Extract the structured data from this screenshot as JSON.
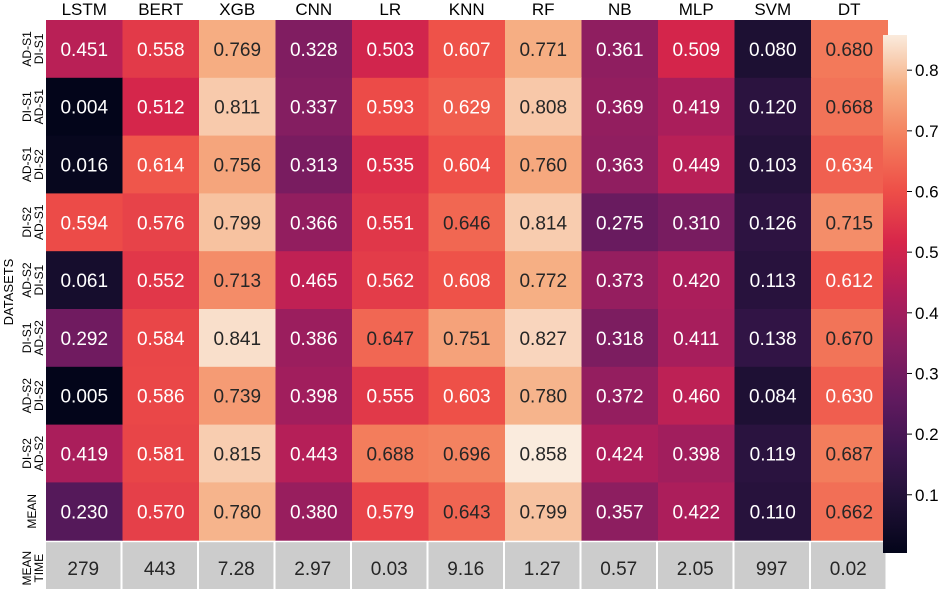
{
  "chart_data": {
    "type": "heatmap",
    "ylabel": "DATASETS",
    "columns": [
      "LSTM",
      "BERT",
      "XGB",
      "CNN",
      "LR",
      "KNN",
      "RF",
      "NB",
      "MLP",
      "SVM",
      "DT"
    ],
    "rows": [
      {
        "label": [
          "AD-S1",
          "DI-S1"
        ],
        "values": [
          "0.451",
          "0.558",
          "0.769",
          "0.328",
          "0.503",
          "0.607",
          "0.771",
          "0.361",
          "0.509",
          "0.080",
          "0.680"
        ]
      },
      {
        "label": [
          "DI-S1",
          "AD-S1"
        ],
        "values": [
          "0.004",
          "0.512",
          "0.811",
          "0.337",
          "0.593",
          "0.629",
          "0.808",
          "0.369",
          "0.419",
          "0.120",
          "0.668"
        ]
      },
      {
        "label": [
          "AD-S1",
          "DI-S2"
        ],
        "values": [
          "0.016",
          "0.614",
          "0.756",
          "0.313",
          "0.535",
          "0.604",
          "0.760",
          "0.363",
          "0.449",
          "0.103",
          "0.634"
        ]
      },
      {
        "label": [
          "DI-S2",
          "AD-S1"
        ],
        "values": [
          "0.594",
          "0.576",
          "0.799",
          "0.366",
          "0.551",
          "0.646",
          "0.814",
          "0.275",
          "0.310",
          "0.126",
          "0.715"
        ]
      },
      {
        "label": [
          "AD-S2",
          "DI-S1"
        ],
        "values": [
          "0.061",
          "0.552",
          "0.713",
          "0.465",
          "0.562",
          "0.608",
          "0.772",
          "0.373",
          "0.420",
          "0.113",
          "0.612"
        ]
      },
      {
        "label": [
          "DI-S1",
          "AD-S2"
        ],
        "values": [
          "0.292",
          "0.584",
          "0.841",
          "0.386",
          "0.647",
          "0.751",
          "0.827",
          "0.318",
          "0.411",
          "0.138",
          "0.670"
        ]
      },
      {
        "label": [
          "AD-S2",
          "DI-S2"
        ],
        "values": [
          "0.005",
          "0.586",
          "0.739",
          "0.398",
          "0.555",
          "0.603",
          "0.780",
          "0.372",
          "0.460",
          "0.084",
          "0.630"
        ]
      },
      {
        "label": [
          "DI-S2",
          "AD-S2"
        ],
        "values": [
          "0.419",
          "0.581",
          "0.815",
          "0.443",
          "0.688",
          "0.696",
          "0.858",
          "0.424",
          "0.398",
          "0.119",
          "0.687"
        ]
      },
      {
        "label": [
          "MEAN"
        ],
        "values": [
          "0.230",
          "0.570",
          "0.780",
          "0.380",
          "0.579",
          "0.643",
          "0.799",
          "0.357",
          "0.422",
          "0.110",
          "0.662"
        ]
      }
    ],
    "time_row": {
      "label": [
        "MEAN",
        "TIME"
      ],
      "values": [
        "279",
        "443",
        "7.28",
        "2.97",
        "0.03",
        "9.16",
        "1.27",
        "0.57",
        "2.05",
        "997",
        "0.02"
      ]
    },
    "colorbar": {
      "range": [
        0.004,
        0.858
      ],
      "ticks": [
        "0.1",
        "0.2",
        "0.3",
        "0.4",
        "0.5",
        "0.6",
        "0.7",
        "0.8"
      ]
    },
    "colormap": "rocket",
    "time_row_color": "#cccccc"
  }
}
